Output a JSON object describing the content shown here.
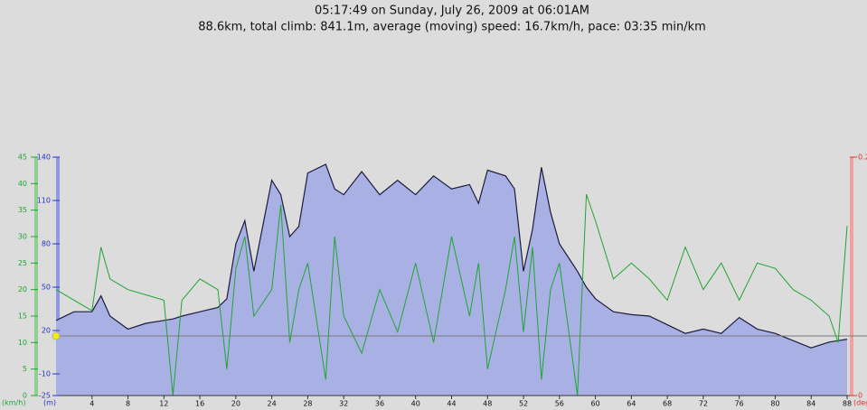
{
  "chart_data": {
    "type": "line",
    "title": "05:17:49 on Sunday, July 26, 2009 at 06:01AM",
    "subtitle": "88.6km, total climb: 841.1m, average (moving) speed: 16.7km/h, pace: 03:35 min/km",
    "x": [
      0,
      2,
      4,
      5,
      6,
      8,
      10,
      12,
      13,
      14,
      16,
      18,
      19,
      20,
      21,
      22,
      24,
      25,
      26,
      27,
      28,
      30,
      31,
      32,
      34,
      36,
      38,
      40,
      42,
      44,
      46,
      47,
      48,
      50,
      51,
      52,
      53,
      54,
      55,
      56,
      58,
      59,
      60,
      62,
      64,
      66,
      68,
      70,
      72,
      74,
      76,
      78,
      80,
      82,
      84,
      86,
      87,
      88
    ],
    "xlim": [
      0,
      88.6
    ],
    "xticks": [
      4,
      8,
      12,
      16,
      20,
      24,
      28,
      32,
      36,
      40,
      44,
      48,
      52,
      56,
      60,
      64,
      68,
      72,
      76,
      80,
      84,
      88
    ],
    "ylim": [
      -25,
      140
    ],
    "yticks": [
      -25,
      -10,
      20,
      50,
      80,
      110,
      140
    ],
    "ylabel": "(m)",
    "y2lim": [
      0,
      45
    ],
    "y2ticks": [
      0,
      5,
      10,
      15,
      20,
      25,
      30,
      35,
      40,
      45
    ],
    "y2label": "(km/h)",
    "y3lim": [
      0,
      0.2
    ],
    "y3ticks": [
      0,
      0.2
    ],
    "y3label": "(degre",
    "series": [
      {
        "color": "#1c1c3c",
        "fill": "#a9b1e4",
        "axis": "y",
        "values": [
          27,
          33,
          33,
          44,
          30,
          21,
          25,
          27,
          28,
          30,
          33,
          36,
          42,
          80,
          96,
          61,
          124,
          114,
          85,
          92,
          129,
          135,
          118,
          114,
          130,
          114,
          124,
          114,
          127,
          118,
          121,
          108,
          131,
          127,
          118,
          61,
          90,
          133,
          102,
          80,
          61,
          50,
          42,
          33,
          31,
          30,
          24,
          18,
          21,
          18,
          29,
          21,
          18,
          13,
          8,
          12,
          13,
          14
        ]
      },
      {
        "color": "#1fa531",
        "axis": "y2",
        "values": [
          20,
          18,
          16,
          28,
          22,
          20,
          19,
          18,
          0,
          18,
          22,
          20,
          5,
          24,
          30,
          15,
          20,
          36,
          10,
          20,
          25,
          3,
          30,
          15,
          8,
          20,
          12,
          25,
          10,
          30,
          15,
          25,
          5,
          20,
          30,
          12,
          28,
          3,
          20,
          25,
          0,
          38,
          33,
          22,
          25,
          22,
          18,
          28,
          20,
          25,
          18,
          25,
          24,
          20,
          18,
          15,
          10,
          32
        ]
      }
    ]
  }
}
